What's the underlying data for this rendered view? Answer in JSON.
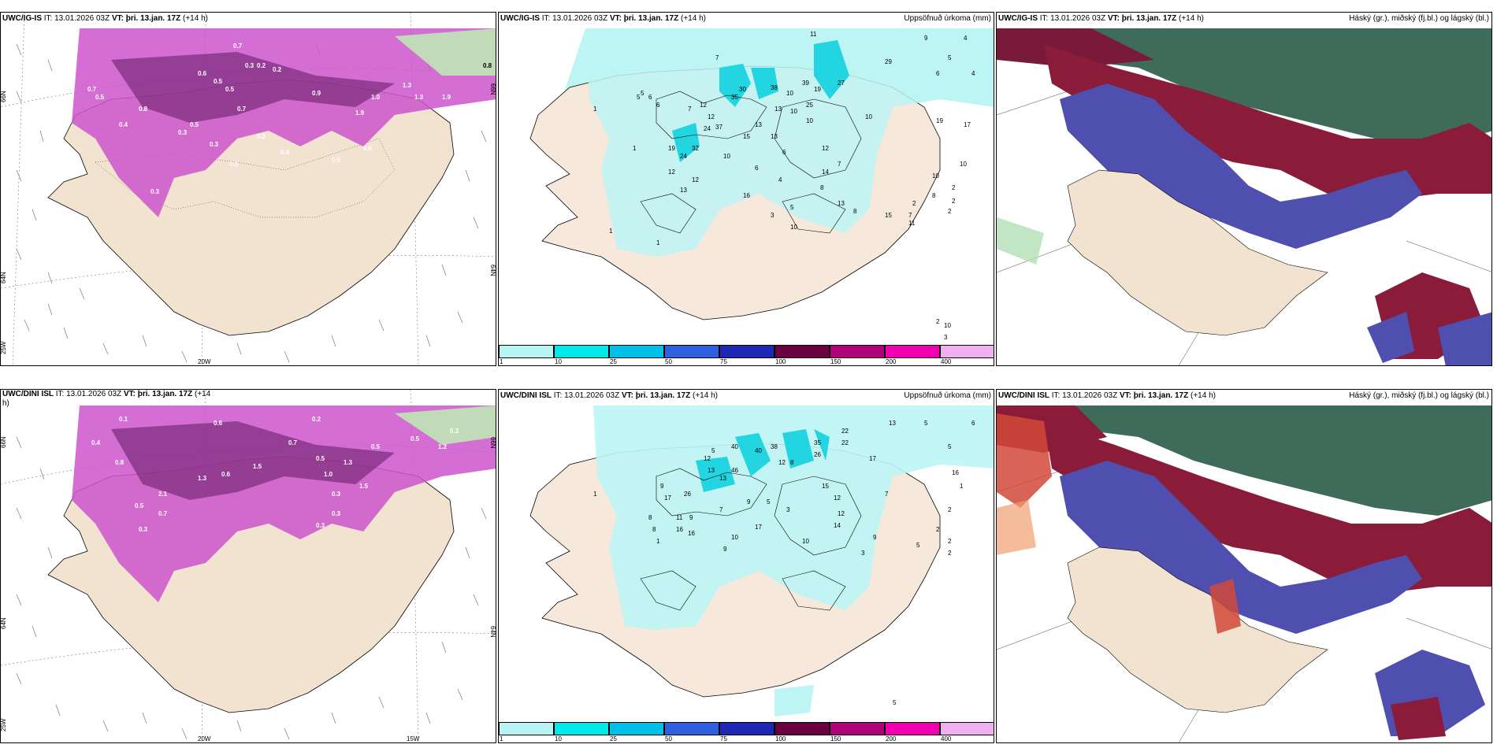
{
  "panels": [
    {
      "id": "snow_igis",
      "model": "UWC/IG-IS",
      "init": "IT: 13.01.2026 03Z",
      "vt_prefix": "VT:",
      "valid": "þri. 13.jan. 17Z",
      "lead": "(+14 h)",
      "right_title": "",
      "axis_labels": [
        "66N",
        "64N",
        "25W",
        "20W",
        "66N",
        "64N"
      ],
      "values": [
        "0.7",
        "0.3",
        "0.2",
        "0.2",
        "0.8",
        "0.6",
        "0.5",
        "0.5",
        "0.7",
        "0.5",
        "1.0",
        "0.9",
        "0.8",
        "0.4",
        "0.3",
        "0.5",
        "1.9",
        "1.3",
        "0.6",
        "0.5",
        "0.4",
        "0.7",
        "1.3",
        "1.9",
        "0.3",
        "0.5",
        "0.2",
        "0.3"
      ]
    },
    {
      "id": "precip_igis",
      "model": "UWC/IG-IS",
      "init": "IT: 13.01.2026 03Z",
      "vt_prefix": "VT:",
      "valid": "þri. 13.jan. 17Z",
      "lead": "(+14 h)",
      "right_title": "Uppsöfnuð úrkoma (mm)",
      "values": [
        "11",
        "9",
        "4",
        "7",
        "29",
        "5",
        "6",
        "4",
        "30",
        "38",
        "19",
        "39",
        "27",
        "10",
        "5",
        "6",
        "35",
        "12",
        "13",
        "10",
        "25",
        "10",
        "19",
        "7",
        "12",
        "37",
        "24",
        "13",
        "10",
        "17",
        "15",
        "13",
        "12",
        "19",
        "32",
        "10",
        "6",
        "7",
        "10",
        "12",
        "6",
        "10",
        "24",
        "13",
        "4",
        "12",
        "2",
        "8",
        "16",
        "8",
        "14",
        "2",
        "2",
        "13",
        "7",
        "1",
        "5",
        "15",
        "11",
        "8",
        "3",
        "2",
        "10",
        "1",
        "1",
        "2",
        "10",
        "3",
        "1",
        "5",
        "6"
      ]
    },
    {
      "id": "ptype_igis",
      "model": "UWC/IG-IS",
      "init": "IT: 13.01.2026 03Z",
      "vt_prefix": "VT:",
      "valid": "þri. 13.jan. 17Z",
      "lead": "(+14 h)",
      "right_title": "Háský (gr.), miðský (fj.bl.) og lágský (bl.)",
      "values": []
    },
    {
      "id": "snow_dini",
      "model": "UWC/DINI ISL",
      "init": "IT: 13.01.2026 03Z",
      "vt_prefix": "VT:",
      "valid": "þri. 13.jan. 17Z",
      "lead": "(+14",
      "lead_wrap": "h)",
      "right_title": "",
      "axis_labels": [
        "66N",
        "64N",
        "25W",
        "20W",
        "15W",
        "66N",
        "64N"
      ],
      "values": [
        "0.1",
        "0.2",
        "0.6",
        "0.3",
        "0.5",
        "1.2",
        "0.5",
        "0.4",
        "0.8",
        "1.3",
        "0.7",
        "0.5",
        "1.5",
        "1.0",
        "0.6",
        "0.3",
        "2.1",
        "0.3",
        "0.5",
        "1.3",
        "1.5",
        "0.3",
        "0.7",
        "0.3"
      ]
    },
    {
      "id": "precip_dini",
      "model": "UWC/DINI ISL",
      "init": "IT: 13.01.2026 03Z",
      "vt_prefix": "VT:",
      "valid": "þri. 13.jan. 17Z",
      "lead": "(+14 h)",
      "right_title": "Uppsöfnuð úrkoma (mm)",
      "values": [
        "13",
        "5",
        "6",
        "22",
        "5",
        "40",
        "5",
        "22",
        "35",
        "17",
        "40",
        "38",
        "26",
        "12",
        "8",
        "12",
        "13",
        "16",
        "46",
        "1",
        "13",
        "9",
        "15",
        "1",
        "26",
        "12",
        "7",
        "17",
        "5",
        "9",
        "7",
        "3",
        "12",
        "8",
        "11",
        "9",
        "14",
        "2",
        "16",
        "16",
        "17",
        "8",
        "1",
        "10",
        "10",
        "9",
        "2",
        "9",
        "2",
        "3",
        "5",
        "2",
        "5"
      ]
    },
    {
      "id": "ptype_dini",
      "model": "UWC/DINI ISL",
      "init": "IT: 13.01.2026 03Z",
      "vt_prefix": "VT:",
      "valid": "þri. 13.jan. 17Z",
      "lead": "(+14 h)",
      "right_title": "Háský (gr.), miðský (fj.bl.) og lágský (bl.)",
      "values": []
    }
  ],
  "colorbar": {
    "colors": [
      "#b8f4f4",
      "#00e8e8",
      "#00c0e8",
      "#3060e0",
      "#1e28b4",
      "#6a0040",
      "#b0007a",
      "#f000b0",
      "#f0b0f0"
    ],
    "labels": [
      "1",
      "10",
      "25",
      "50",
      "75",
      "100",
      "150",
      "200",
      "400"
    ]
  }
}
